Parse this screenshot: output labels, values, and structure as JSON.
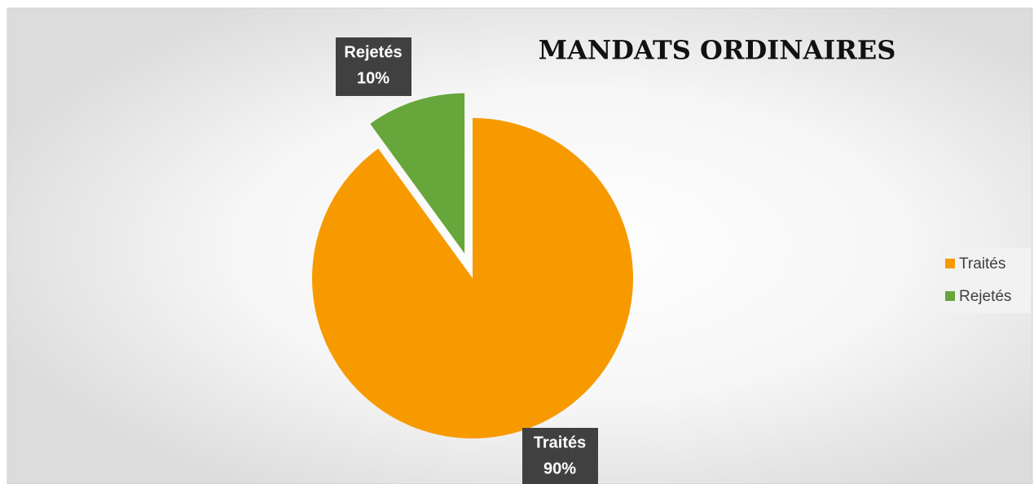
{
  "chart_data": {
    "type": "pie",
    "title": "MANDATS ORDINAIRES",
    "categories": [
      "Traités",
      "Rejetés"
    ],
    "values": [
      90,
      10
    ],
    "value_labels": [
      "90%",
      "10%"
    ],
    "colors": [
      "#f79a00",
      "#67a63b"
    ],
    "legend": "right"
  }
}
